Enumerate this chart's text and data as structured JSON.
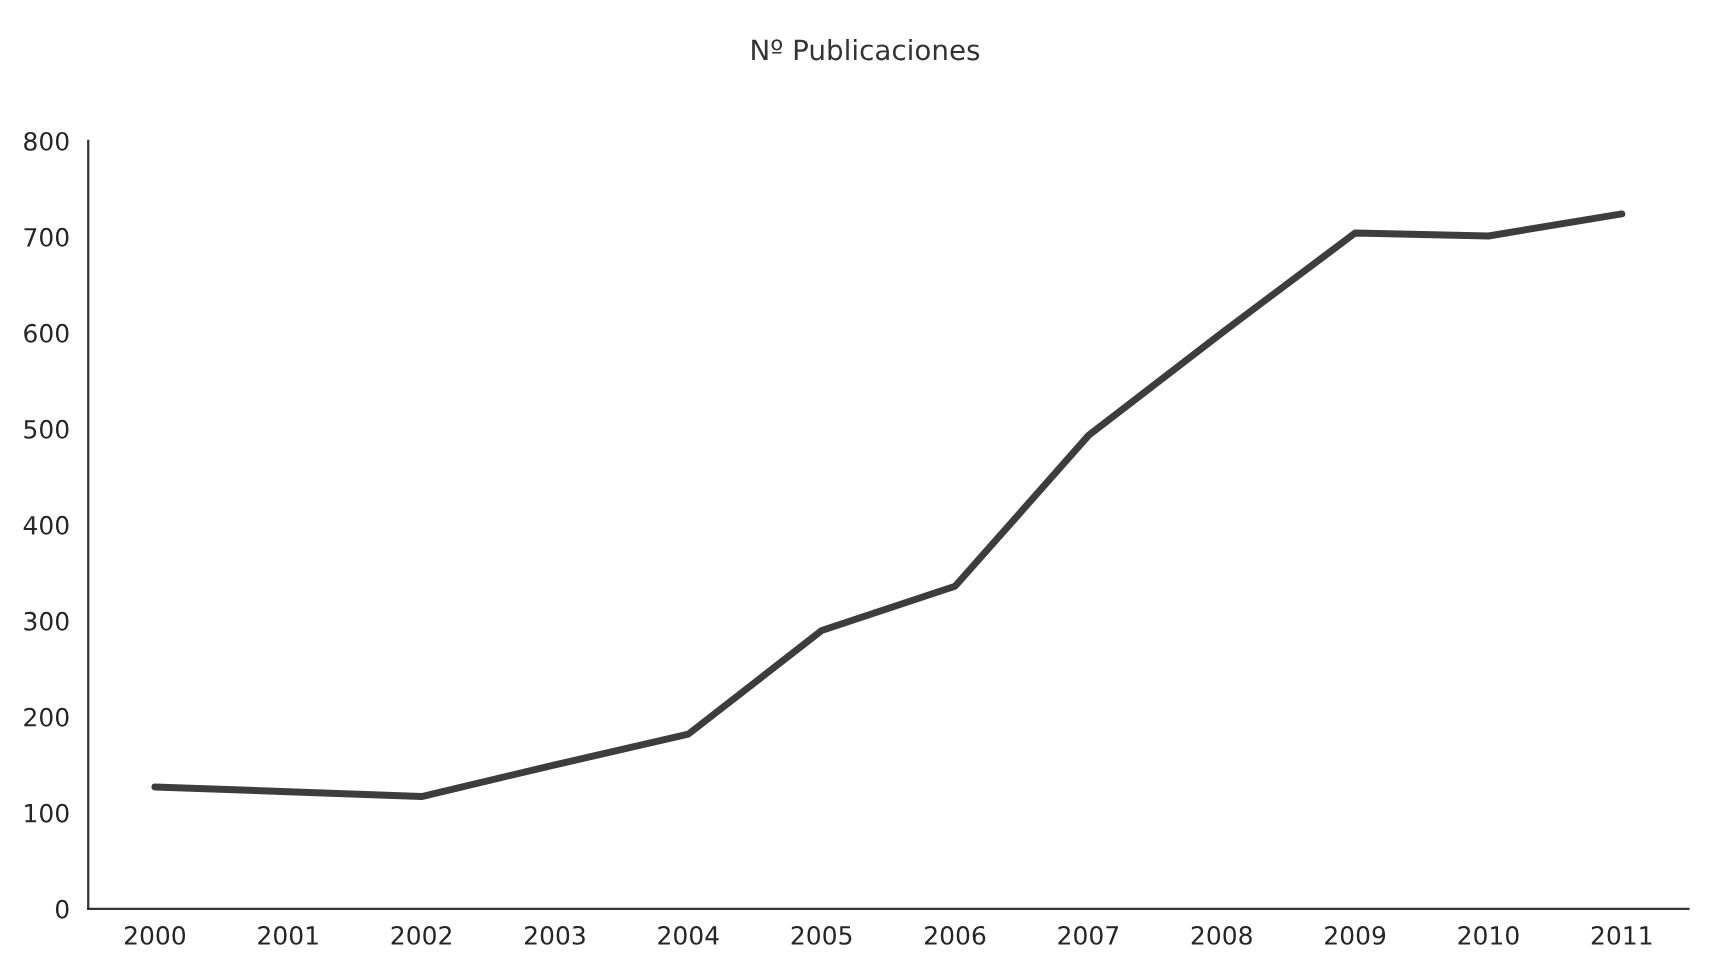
{
  "chart_data": {
    "type": "line",
    "title": "Nº Publicaciones",
    "categories": [
      "2000",
      "2001",
      "2002",
      "2003",
      "2004",
      "2005",
      "2006",
      "2007",
      "2008",
      "2009",
      "2010",
      "2011"
    ],
    "series": [
      {
        "color": "#3d3d3d",
        "values": [
          127,
          122,
          117,
          150,
          182,
          290,
          336,
          493,
          600,
          704,
          701,
          724
        ]
      }
    ],
    "ylim": [
      0,
      800
    ],
    "yticks": [
      0,
      100,
      200,
      300,
      400,
      500,
      600,
      700,
      800
    ],
    "grid": false,
    "legend": false,
    "marker": "none",
    "line_style": "solid"
  }
}
